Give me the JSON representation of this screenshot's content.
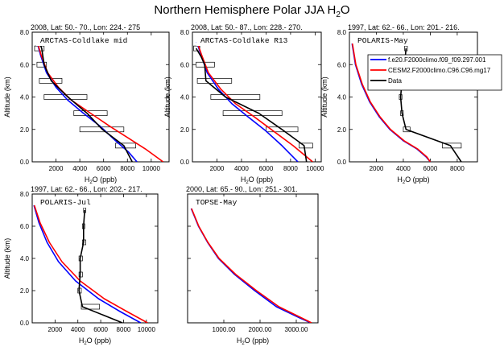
{
  "figure": {
    "title": "Northern Hemisphere Polar JJA H",
    "title_sub": "2",
    "title_tail": "O"
  },
  "legend": {
    "entries": [
      {
        "label": "f.e20.F2000climo.f09_f09.297.001",
        "color": "#0000ff"
      },
      {
        "label": "CESM2.F2000climo.C96.C96.mg17",
        "color": "#ff0000"
      },
      {
        "label": "Data",
        "color": "#000000"
      }
    ]
  },
  "chart_data": [
    {
      "type": "line",
      "header": "2008, Lat:  50.- 70., Lon: 224.- 275",
      "campaign": "ARCTAS-Coldlake mid",
      "xlabel": "H2O (ppb)",
      "ylabel": "Altitude (km)",
      "xlim": [
        0,
        11500
      ],
      "ylim": [
        0,
        8
      ],
      "xticks": [
        2000,
        4000,
        6000,
        8000,
        10000
      ],
      "xtick_labels": [
        "2000",
        "4000",
        "6000",
        "8000",
        "10000"
      ],
      "yticks": [
        0,
        2,
        4,
        6,
        8
      ],
      "ytick_labels": [
        "0.0",
        "2.0",
        "4.0",
        "6.0",
        "8.0"
      ],
      "series": [
        {
          "name": "f.e20.F2000climo.f09_f09.297.001",
          "color": "#0000ff",
          "points": [
            [
              400,
              7.4
            ],
            [
              700,
              6.6
            ],
            [
              1200,
              5.5
            ],
            [
              2000,
              4.6
            ],
            [
              3000,
              3.8
            ],
            [
              4300,
              3.0
            ],
            [
              5700,
              2.2
            ],
            [
              7000,
              1.3
            ],
            [
              8100,
              0.6
            ],
            [
              8800,
              0.0
            ]
          ]
        },
        {
          "name": "CESM2.F2000climo.C96.C96.mg17",
          "color": "#ff0000",
          "points": [
            [
              420,
              7.4
            ],
            [
              750,
              6.6
            ],
            [
              1300,
              5.5
            ],
            [
              2200,
              4.6
            ],
            [
              3300,
              3.8
            ],
            [
              4900,
              3.0
            ],
            [
              6500,
              2.2
            ],
            [
              8000,
              1.5
            ],
            [
              9500,
              0.8
            ],
            [
              11000,
              0.0
            ]
          ]
        },
        {
          "name": "Data",
          "color": "#000000",
          "points": [
            [
              600,
              7.4
            ],
            [
              800,
              7.0
            ],
            [
              1000,
              6.0
            ],
            [
              1600,
              5.0
            ],
            [
              3000,
              4.0
            ],
            [
              4600,
              3.0
            ],
            [
              5900,
              2.0
            ],
            [
              7700,
              1.0
            ],
            [
              8400,
              0.0
            ]
          ]
        }
      ],
      "boxes": [
        [
          200,
          1000,
          7.0
        ],
        [
          400,
          1200,
          6.0
        ],
        [
          600,
          2500,
          5.0
        ],
        [
          1000,
          4600,
          4.0
        ],
        [
          3500,
          6300,
          3.0
        ],
        [
          4000,
          7700,
          2.0
        ],
        [
          7000,
          8700,
          1.0
        ]
      ]
    },
    {
      "type": "line",
      "header": "2008, Lat:  50.- 87., Lon: 228.- 270.",
      "campaign": "ARCTAS-Coldlake R13",
      "xlabel": "H2O (ppb)",
      "ylabel": "Altitude (km)",
      "xlim": [
        0,
        10500
      ],
      "ylim": [
        0,
        8
      ],
      "xticks": [
        2000,
        4000,
        6000,
        8000,
        10000
      ],
      "xtick_labels": [
        "2000",
        "4000",
        "6000",
        "8000",
        "10000"
      ],
      "yticks": [
        0,
        2,
        4,
        6,
        8
      ],
      "ytick_labels": [
        "0.0",
        "2.0",
        "4.0",
        "6.0",
        "8.0"
      ],
      "series": [
        {
          "name": "f.e20.F2000climo.f09_f09.297.001",
          "color": "#0000ff",
          "points": [
            [
              350,
              7.4
            ],
            [
              700,
              6.6
            ],
            [
              1200,
              5.5
            ],
            [
              2100,
              4.5
            ],
            [
              3200,
              3.6
            ],
            [
              4500,
              2.8
            ],
            [
              6000,
              1.9
            ],
            [
              7300,
              1.0
            ],
            [
              8600,
              0.0
            ]
          ]
        },
        {
          "name": "CESM2.F2000climo.C96.C96.mg17",
          "color": "#ff0000",
          "points": [
            [
              380,
              7.4
            ],
            [
              750,
              6.6
            ],
            [
              1300,
              5.5
            ],
            [
              2300,
              4.5
            ],
            [
              3500,
              3.6
            ],
            [
              5000,
              2.8
            ],
            [
              6600,
              1.9
            ],
            [
              8200,
              1.0
            ],
            [
              9800,
              0.0
            ]
          ]
        },
        {
          "name": "Data",
          "color": "#000000",
          "points": [
            [
              300,
              7.0
            ],
            [
              700,
              6.5
            ],
            [
              1000,
              6.0
            ],
            [
              1100,
              5.0
            ],
            [
              2700,
              4.0
            ],
            [
              5400,
              3.0
            ],
            [
              7300,
              2.0
            ],
            [
              9100,
              1.0
            ],
            [
              9300,
              0.0
            ]
          ]
        }
      ],
      "boxes": [
        [
          100,
          600,
          7.0
        ],
        [
          300,
          1800,
          6.0
        ],
        [
          400,
          3200,
          5.0
        ],
        [
          1500,
          5500,
          4.0
        ],
        [
          2500,
          7300,
          3.0
        ],
        [
          6000,
          8600,
          2.0
        ],
        [
          8700,
          9800,
          1.0
        ]
      ]
    },
    {
      "type": "line",
      "header": "1997, Lat:  62.- 66., Lon: 201.- 216.",
      "campaign": "POLARIS-May",
      "xlabel": "H2O (ppb)",
      "ylabel": "Altitude (km)",
      "xlim": [
        0,
        9500
      ],
      "ylim": [
        0,
        8
      ],
      "xticks": [
        2000,
        4000,
        6000,
        8000
      ],
      "xtick_labels": [
        "2000",
        "4000",
        "6000",
        "8000"
      ],
      "yticks": [
        0,
        2,
        4,
        6,
        8
      ],
      "ytick_labels": [
        "0.0",
        "2.0",
        "4.0",
        "6.0",
        "8.0"
      ],
      "series": [
        {
          "name": "f.e20.F2000climo.f09_f09.297.001",
          "color": "#0000ff",
          "points": [
            [
              200,
              7.3
            ],
            [
              450,
              6.0
            ],
            [
              900,
              4.8
            ],
            [
              1500,
              3.7
            ],
            [
              2200,
              2.8
            ],
            [
              3000,
              2.0
            ],
            [
              4000,
              1.3
            ],
            [
              5000,
              0.8
            ],
            [
              5700,
              0.3
            ],
            [
              6000,
              0.0
            ]
          ]
        },
        {
          "name": "CESM2.F2000climo.C96.C96.mg17",
          "color": "#ff0000",
          "points": [
            [
              220,
              7.3
            ],
            [
              480,
              6.0
            ],
            [
              950,
              4.8
            ],
            [
              1550,
              3.7
            ],
            [
              2250,
              2.8
            ],
            [
              3050,
              2.0
            ],
            [
              4050,
              1.3
            ],
            [
              5050,
              0.8
            ],
            [
              5750,
              0.3
            ],
            [
              6000,
              0.0
            ]
          ]
        },
        {
          "name": "Data",
          "color": "#000000",
          "points": [
            [
              4200,
              7.0
            ],
            [
              4100,
              6.0
            ],
            [
              3900,
              5.0
            ],
            [
              3800,
              4.0
            ],
            [
              3900,
              3.0
            ],
            [
              4200,
              2.0
            ],
            [
              7500,
              1.0
            ],
            [
              8300,
              0.0
            ]
          ]
        }
      ],
      "boxes": [
        [
          4100,
          4300,
          7.0
        ],
        [
          4000,
          4200,
          6.0
        ],
        [
          3800,
          4000,
          5.0
        ],
        [
          3700,
          3900,
          4.0
        ],
        [
          3800,
          4000,
          3.0
        ],
        [
          4000,
          4500,
          2.0
        ],
        [
          6900,
          8300,
          1.0
        ]
      ]
    },
    {
      "type": "line",
      "header": "1997, Lat:  62.- 66., Lon: 202.- 217.",
      "campaign": "POLARIS-Jul",
      "xlabel": "H2O (ppb)",
      "ylabel": "Altitude (km)",
      "xlim": [
        0,
        11000
      ],
      "ylim": [
        0,
        8
      ],
      "xticks": [
        2000,
        4000,
        6000,
        8000,
        10000
      ],
      "xtick_labels": [
        "2000",
        "4000",
        "6000",
        "8000",
        "10000"
      ],
      "yticks": [
        0,
        2,
        4,
        6,
        8
      ],
      "ytick_labels": [
        "0.0",
        "2.0",
        "4.0",
        "6.0",
        "8.0"
      ],
      "series": [
        {
          "name": "f.e20.F2000climo.f09_f09.297.001",
          "color": "#0000ff",
          "points": [
            [
              150,
              7.3
            ],
            [
              600,
              6.2
            ],
            [
              1300,
              5.0
            ],
            [
              2300,
              3.8
            ],
            [
              3800,
              2.6
            ],
            [
              5800,
              1.5
            ],
            [
              7700,
              0.7
            ],
            [
              9500,
              0.0
            ]
          ]
        },
        {
          "name": "CESM2.F2000climo.C96.C96.mg17",
          "color": "#ff0000",
          "points": [
            [
              180,
              7.3
            ],
            [
              700,
              6.2
            ],
            [
              1500,
              5.0
            ],
            [
              2600,
              3.8
            ],
            [
              4200,
              2.6
            ],
            [
              6300,
              1.5
            ],
            [
              8300,
              0.7
            ],
            [
              10100,
              0.0
            ]
          ]
        },
        {
          "name": "Data",
          "color": "#000000",
          "points": [
            [
              4600,
              7.0
            ],
            [
              4500,
              6.0
            ],
            [
              4500,
              5.0
            ],
            [
              4200,
              4.0
            ],
            [
              4200,
              3.0
            ],
            [
              4100,
              2.0
            ],
            [
              4400,
              1.0
            ],
            [
              7900,
              0.0
            ]
          ]
        }
      ],
      "boxes": [
        [
          4500,
          4700,
          7.0
        ],
        [
          4400,
          4600,
          6.0
        ],
        [
          4400,
          4700,
          5.0
        ],
        [
          4100,
          4400,
          4.0
        ],
        [
          4100,
          4400,
          3.0
        ],
        [
          4000,
          4300,
          2.0
        ],
        [
          4300,
          5900,
          1.0
        ]
      ]
    },
    {
      "type": "line",
      "header": "2000, Lat:  65.- 90., Lon: 251.- 301.",
      "campaign": "TOPSE-May",
      "xlabel": "H2O (ppb)",
      "ylabel": "",
      "xlim": [
        0,
        3600
      ],
      "ylim": [
        0,
        8
      ],
      "xticks": [
        1000,
        2000,
        3000
      ],
      "xtick_labels": [
        "1000.00",
        "2000.00",
        "3000.00"
      ],
      "yticks": [
        0,
        2,
        4,
        6,
        8
      ],
      "ytick_labels": [],
      "series": [
        {
          "name": "f.e20.F2000climo.f09_f09.297.001",
          "color": "#0000ff",
          "points": [
            [
              100,
              7.1
            ],
            [
              300,
              6.0
            ],
            [
              550,
              5.0
            ],
            [
              850,
              4.0
            ],
            [
              1300,
              3.0
            ],
            [
              1850,
              2.0
            ],
            [
              2450,
              1.0
            ],
            [
              3100,
              0.3
            ],
            [
              3400,
              0.0
            ]
          ]
        },
        {
          "name": "CESM2.F2000climo.C96.C96.mg17",
          "color": "#ff0000",
          "points": [
            [
              110,
              7.1
            ],
            [
              310,
              6.0
            ],
            [
              560,
              5.0
            ],
            [
              870,
              4.0
            ],
            [
              1330,
              3.0
            ],
            [
              1900,
              2.0
            ],
            [
              2520,
              1.0
            ],
            [
              3150,
              0.3
            ],
            [
              3420,
              0.0
            ]
          ]
        }
      ],
      "boxes": []
    }
  ]
}
